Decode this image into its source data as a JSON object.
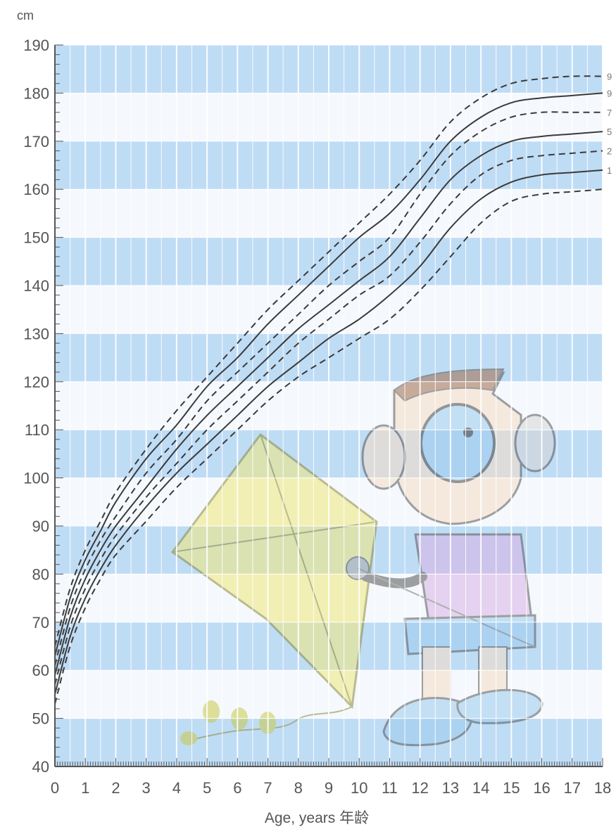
{
  "chart_data": {
    "type": "line",
    "y_unit_label": "cm",
    "xlabel": "Age, years 年龄",
    "ylabel": "",
    "xlim": [
      0,
      18
    ],
    "ylim": [
      40,
      190
    ],
    "x_ticks": [
      "0",
      "1",
      "2",
      "3",
      "4",
      "5",
      "6",
      "7",
      "8",
      "9",
      "10",
      "11",
      "12",
      "13",
      "14",
      "15",
      "16",
      "17",
      "18"
    ],
    "y_ticks": [
      "40",
      "50",
      "60",
      "70",
      "80",
      "90",
      "100",
      "110",
      "120",
      "130",
      "140",
      "150",
      "160",
      "170",
      "180",
      "190"
    ],
    "grid": true,
    "percentile_labels": [
      "9",
      "9",
      "7",
      "5",
      "2",
      "1"
    ],
    "x": [
      0,
      0.5,
      1,
      1.5,
      2,
      3,
      4,
      5,
      6,
      7,
      8,
      9,
      10,
      11,
      12,
      13,
      14,
      15,
      16,
      17,
      18
    ],
    "series": [
      {
        "values": [
          53,
          65,
          73,
          79,
          84,
          91,
          98,
          104,
          110,
          116,
          121,
          125,
          129,
          133,
          139,
          146,
          153,
          157.5,
          159,
          159.5,
          160
        ],
        "style": "dashed"
      },
      {
        "values": [
          55,
          67,
          75,
          81,
          86,
          94,
          101,
          107,
          113,
          119,
          124,
          129,
          133,
          138,
          144,
          152,
          158,
          161.5,
          163,
          163.5,
          164
        ],
        "style": "solid"
      },
      {
        "values": [
          57,
          69,
          77,
          83,
          88,
          96,
          103,
          110,
          116,
          122,
          128,
          133,
          138,
          142,
          149,
          157,
          163,
          166,
          167,
          167.5,
          168
        ],
        "style": "dashed"
      },
      {
        "values": [
          59,
          71,
          79,
          85,
          90,
          98,
          106,
          113,
          119,
          125,
          131,
          136,
          141,
          146,
          154,
          162,
          167,
          170,
          171,
          171.5,
          172
        ],
        "style": "solid"
      },
      {
        "values": [
          61,
          73,
          81,
          87,
          92,
          101,
          108,
          116,
          122,
          128,
          134,
          140,
          145,
          150,
          159,
          167,
          172,
          175,
          176,
          176,
          176
        ],
        "style": "dashed"
      },
      {
        "values": [
          63,
          75,
          83,
          89,
          95,
          104,
          111,
          119,
          125,
          132,
          138,
          144,
          150,
          155,
          162,
          170,
          175,
          178,
          179,
          179.5,
          180
        ],
        "style": "solid"
      },
      {
        "values": [
          65,
          77,
          85,
          91,
          97,
          106,
          114,
          121,
          128,
          135,
          141,
          147,
          153,
          159,
          166,
          174,
          179,
          182,
          183,
          183.5,
          183.5
        ],
        "style": "dashed"
      }
    ]
  },
  "colors": {
    "band": "#bfdcf5",
    "grid": "#ffffff",
    "plot_bg": "#f5f9fd",
    "curve": "#3a3a3a",
    "axis": "#555555",
    "kite": "#f1e87a",
    "shirt": "#d9b2e6",
    "skin": "#f6dcc6"
  }
}
